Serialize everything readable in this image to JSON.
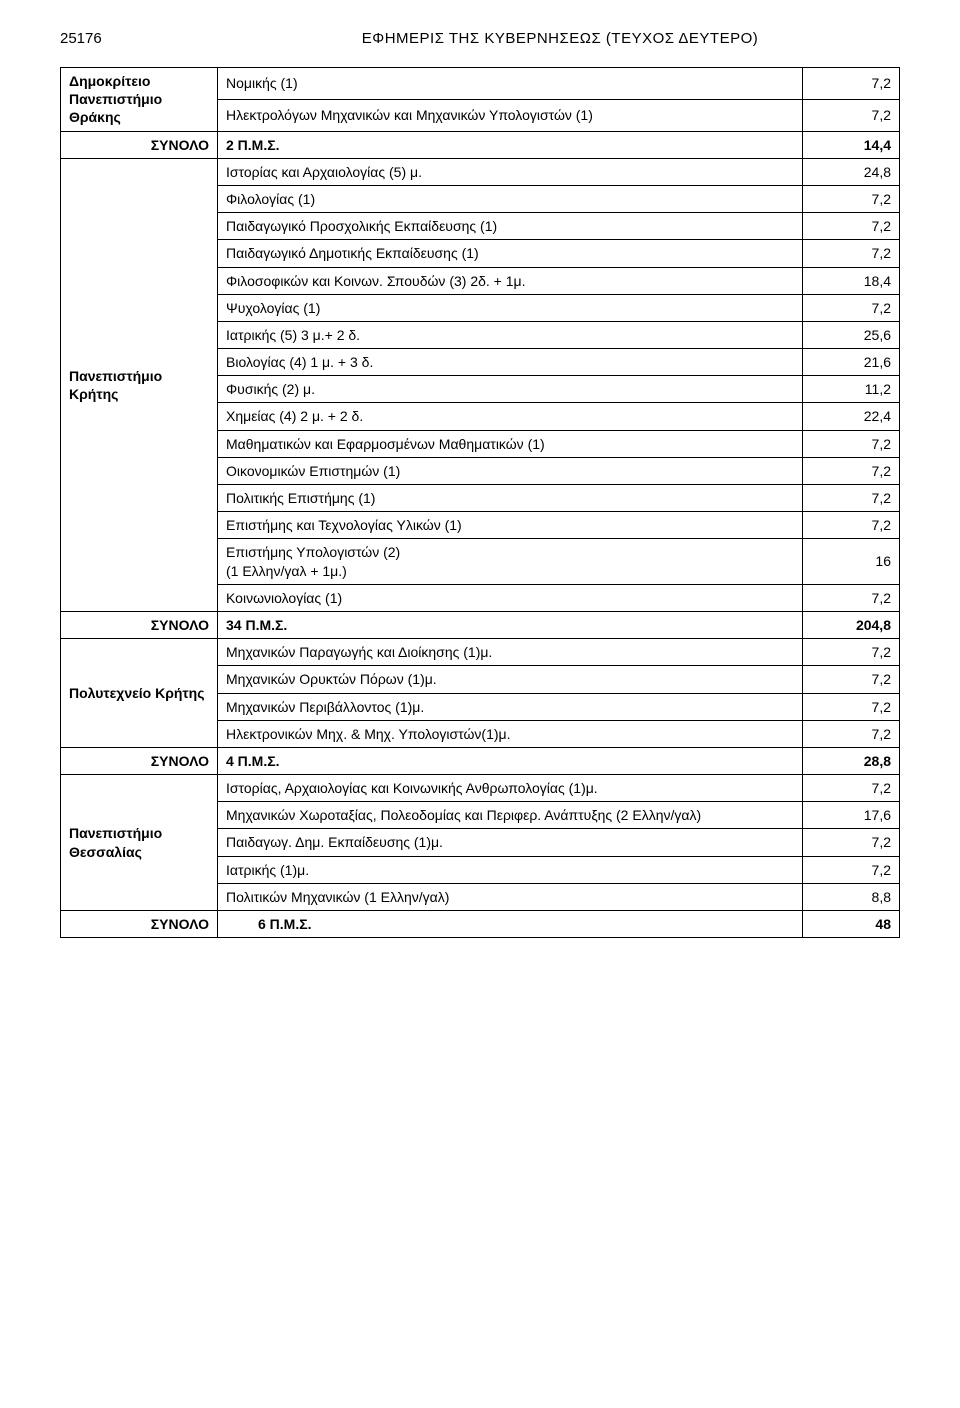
{
  "header": {
    "page_number": "25176",
    "gazette_title": "ΕΦΗΜΕΡΙΣ ΤΗΣ ΚΥΒΕΡΝΗΣΕΩΣ (ΤΕΥΧΟΣ ΔΕΥΤΕΡΟ)"
  },
  "sections": [
    {
      "label": "Δημοκρίτειο Πανεπιστήμιο Θράκης",
      "rows": [
        {
          "name": "Νομικής (1)",
          "value": "7,2"
        },
        {
          "name": "Ηλεκτρολόγων Μηχανικών και Μηχανικών Υπολογιστών (1)",
          "value": "7,2"
        }
      ],
      "total_label": "ΣΥΝΟΛΟ",
      "total_name": "2  Π.Μ.Σ.",
      "total_value": "14,4"
    },
    {
      "label": "Πανεπιστήμιο Κρήτης",
      "rows": [
        {
          "name": "Ιστορίας και Αρχαιολογίας (5) μ.",
          "value": "24,8"
        },
        {
          "name": "Φιλολογίας (1)",
          "value": "7,2"
        },
        {
          "name": "Παιδαγωγικό Προσχολικής Εκπαίδευσης (1)",
          "value": "7,2"
        },
        {
          "name": "Παιδαγωγικό Δημοτικής Εκπαίδευσης (1)",
          "value": "7,2"
        },
        {
          "name": "Φιλοσοφικών και Κοινων. Σπουδών (3) 2δ. + 1μ.",
          "value": "18,4"
        },
        {
          "name": "Ψυχολογίας (1)",
          "value": "7,2"
        },
        {
          "name": "Ιατρικής (5) 3 μ.+ 2 δ.",
          "value": "25,6"
        },
        {
          "name": "Βιολογίας (4)  1 μ. + 3 δ.",
          "value": "21,6"
        },
        {
          "name": "Φυσικής (2) μ.",
          "value": "11,2"
        },
        {
          "name": "Χημείας (4) 2 μ. + 2 δ.",
          "value": "22,4"
        },
        {
          "name": "Μαθηματικών  και Εφαρμοσμένων Μαθηματικών (1)",
          "value": "7,2"
        },
        {
          "name": "Οικονομικών Επιστημών (1)",
          "value": "7,2"
        },
        {
          "name": "Πολιτικής Επιστήμης (1)",
          "value": "7,2"
        },
        {
          "name": "Επιστήμης και Τεχνολογίας Υλικών (1)",
          "value": "7,2"
        },
        {
          "name": "Επιστήμης Υπολογιστών (2)\n(1 Ελλην/γαλ + 1μ.)",
          "value": "16"
        },
        {
          "name": "Κοινωνιολογίας  (1)",
          "value": "7,2"
        }
      ],
      "total_label": "ΣΥΝΟΛΟ",
      "total_name": "34 Π.Μ.Σ.",
      "total_value": "204,8"
    },
    {
      "label": "Πολυτεχνείο Κρήτης",
      "rows": [
        {
          "name": "Μηχανικών Παραγωγής και Διοίκησης (1)μ.",
          "value": "7,2"
        },
        {
          "name": "Μηχανικών Ορυκτών Πόρων (1)μ.",
          "value": "7,2"
        },
        {
          "name": "Μηχανικών Περιβάλλοντος (1)μ.",
          "value": "7,2"
        },
        {
          "name": "Ηλεκτρονικών Μηχ. & Μηχ. Υπολογιστών(1)μ.",
          "value": "7,2"
        }
      ],
      "total_label": "ΣΥΝΟΛΟ",
      "total_name": "4 Π.Μ.Σ.",
      "total_value": "28,8"
    },
    {
      "label": "Πανεπιστήμιο Θεσσαλίας",
      "rows": [
        {
          "name": "Ιστορίας, Αρχαιολογίας και Κοινωνικής Ανθρωπολογίας (1)μ.",
          "value": "7,2"
        },
        {
          "name": "Μηχανικών Χωροταξίας, Πολεοδομίας και Περιφερ. Ανάπτυξης (2 Ελλην/γαλ)",
          "value": "17,6",
          "value_top": true
        },
        {
          "name": "Παιδαγωγ. Δημ. Εκπαίδευσης (1)μ.",
          "value": "7,2",
          "value_top": true
        },
        {
          "name": "Ιατρικής (1)μ.",
          "value": "7,2"
        },
        {
          "name": "Πολιτικών Μηχανικών (1 Ελλην/γαλ)",
          "value": "8,8"
        }
      ],
      "total_label": "ΣΥΝΟΛΟ",
      "total_name": "6 Π.Μ.Σ.",
      "total_value": "48",
      "total_indent": true
    }
  ]
}
